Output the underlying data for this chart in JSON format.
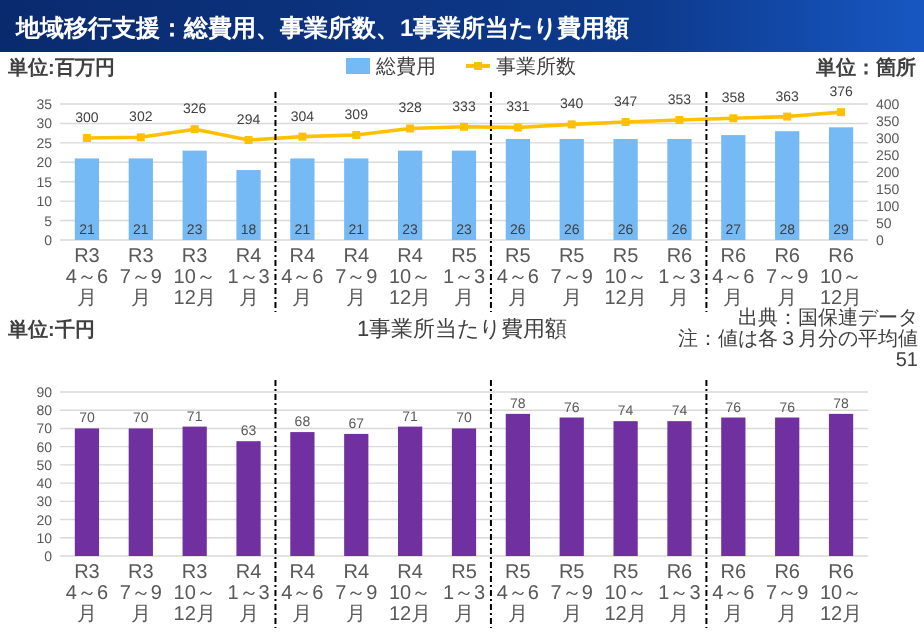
{
  "chart_data": [
    {
      "type": "bar",
      "title": "地域移行支援：総費用、事業所数、1事業所当たり費用額",
      "ylabel": "単位:百万円",
      "y2label": "単位：箇所",
      "categories": [
        "R3\n4～6月",
        "R3\n7～9月",
        "R3\n10～12月",
        "R4\n1～3月",
        "R4\n4～6月",
        "R4\n7～9月",
        "R4\n10～12月",
        "R5\n1～3月",
        "R5\n4～6月",
        "R5\n7～9月",
        "R5\n10～12月",
        "R6\n1～3月",
        "R6\n4～6月",
        "R6\n7～9月",
        "R6\n10～12月"
      ],
      "series": [
        {
          "name": "総費用",
          "type": "bar",
          "color": "#75b9f5",
          "values": [
            21,
            21,
            23,
            18,
            21,
            21,
            23,
            23,
            26,
            26,
            26,
            26,
            27,
            28,
            29
          ]
        },
        {
          "name": "事業所数",
          "type": "line",
          "axis": "y2",
          "color": "#ffc000",
          "values": [
            300,
            302,
            326,
            294,
            304,
            309,
            328,
            333,
            331,
            340,
            347,
            353,
            358,
            363,
            376
          ]
        }
      ],
      "ylim": [
        0,
        35
      ],
      "yticks": [
        0,
        5,
        10,
        15,
        20,
        25,
        30,
        35
      ],
      "y2lim": [
        0,
        400
      ],
      "y2ticks": [
        0,
        50,
        100,
        150,
        200,
        250,
        300,
        350,
        400
      ],
      "grid": "y",
      "legend": "top",
      "data_labels": true,
      "marker": "square"
    },
    {
      "type": "bar",
      "title": "1事業所当たり費用額",
      "ylabel": "単位:千円",
      "categories": [
        "R3\n4～6月",
        "R3\n7～9月",
        "R3\n10～12月",
        "R4\n1～3月",
        "R4\n4～6月",
        "R4\n7～9月",
        "R4\n10～12月",
        "R5\n1～3月",
        "R5\n4～6月",
        "R5\n7～9月",
        "R5\n10～12月",
        "R6\n1～3月",
        "R6\n4～6月",
        "R6\n7～9月",
        "R6\n10～12月"
      ],
      "series": [
        {
          "color": "#7030a0",
          "values": [
            70,
            70,
            71,
            63,
            68,
            67,
            71,
            70,
            78,
            76,
            74,
            74,
            76,
            76,
            78
          ]
        }
      ],
      "ylim": [
        0,
        90
      ],
      "yticks": [
        0,
        10,
        20,
        30,
        40,
        50,
        60,
        70,
        80,
        90
      ],
      "grid": "y",
      "data_labels": true,
      "annotations": [
        "出典：国保連データ",
        "注：値は各３月分の平均値",
        "51"
      ]
    }
  ]
}
